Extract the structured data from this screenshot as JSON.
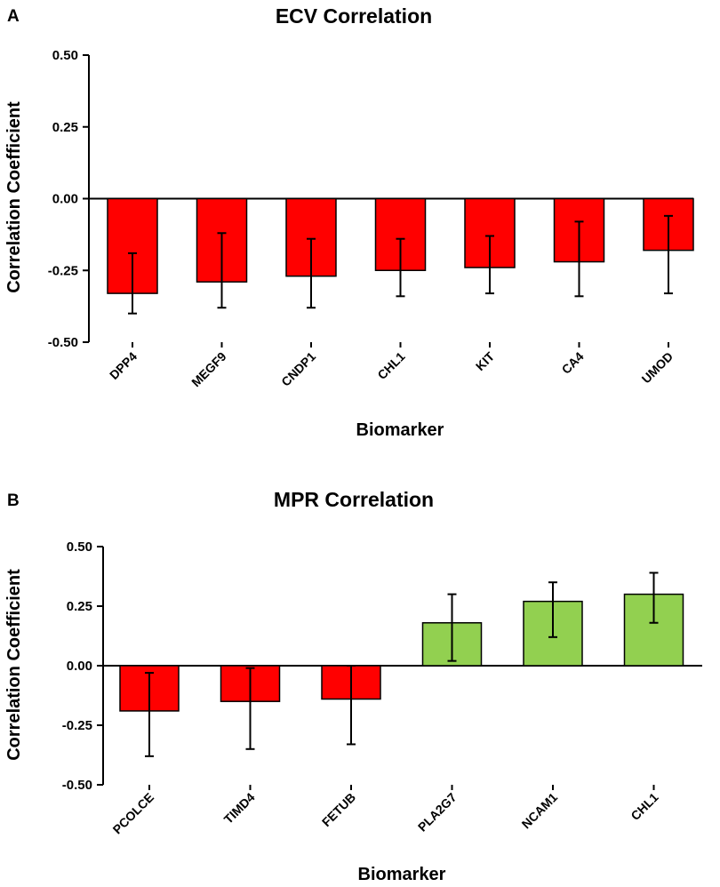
{
  "chart_data": [
    {
      "type": "bar",
      "panel_label": "A",
      "title": "ECV Correlation",
      "xlabel": "Biomarker",
      "ylabel": "Correlation Coefficient",
      "ylim": [
        -0.5,
        0.5
      ],
      "yticks": [
        0.5,
        0.25,
        0.0,
        -0.25,
        -0.5
      ],
      "ytick_labels": [
        "0.50",
        "0.25",
        "0.00",
        "-0.25",
        "-0.50"
      ],
      "categories": [
        "DPP4",
        "MEGF9",
        "CNDP1",
        "CHL1",
        "KIT",
        "CA4",
        "UMOD"
      ],
      "values": [
        -0.33,
        -0.29,
        -0.27,
        -0.25,
        -0.24,
        -0.22,
        -0.18
      ],
      "error_low": [
        -0.4,
        -0.38,
        -0.38,
        -0.34,
        -0.33,
        -0.34,
        -0.33
      ],
      "error_high": [
        -0.19,
        -0.12,
        -0.14,
        -0.14,
        -0.13,
        -0.08,
        -0.06
      ],
      "colors": [
        "#ff0000",
        "#ff0000",
        "#ff0000",
        "#ff0000",
        "#ff0000",
        "#ff0000",
        "#ff0000"
      ]
    },
    {
      "type": "bar",
      "panel_label": "B",
      "title": "MPR Correlation",
      "xlabel": "Biomarker",
      "ylabel": "Correlation Coefficient",
      "ylim": [
        -0.5,
        0.5
      ],
      "yticks": [
        0.5,
        0.25,
        0.0,
        -0.25,
        -0.5
      ],
      "ytick_labels": [
        "0.50",
        "0.25",
        "0.00",
        "-0.25",
        "-0.50"
      ],
      "categories": [
        "PCOLCE",
        "TIMD4",
        "FETUB",
        "PLA2G7",
        "NCAM1",
        "CHL1"
      ],
      "values": [
        -0.19,
        -0.15,
        -0.14,
        0.18,
        0.27,
        0.3
      ],
      "error_low": [
        -0.38,
        -0.35,
        -0.33,
        0.02,
        0.12,
        0.18
      ],
      "error_high": [
        -0.03,
        -0.01,
        0.0,
        0.3,
        0.35,
        0.39
      ],
      "colors": [
        "#ff0000",
        "#ff0000",
        "#ff0000",
        "#92d050",
        "#92d050",
        "#92d050"
      ]
    }
  ]
}
